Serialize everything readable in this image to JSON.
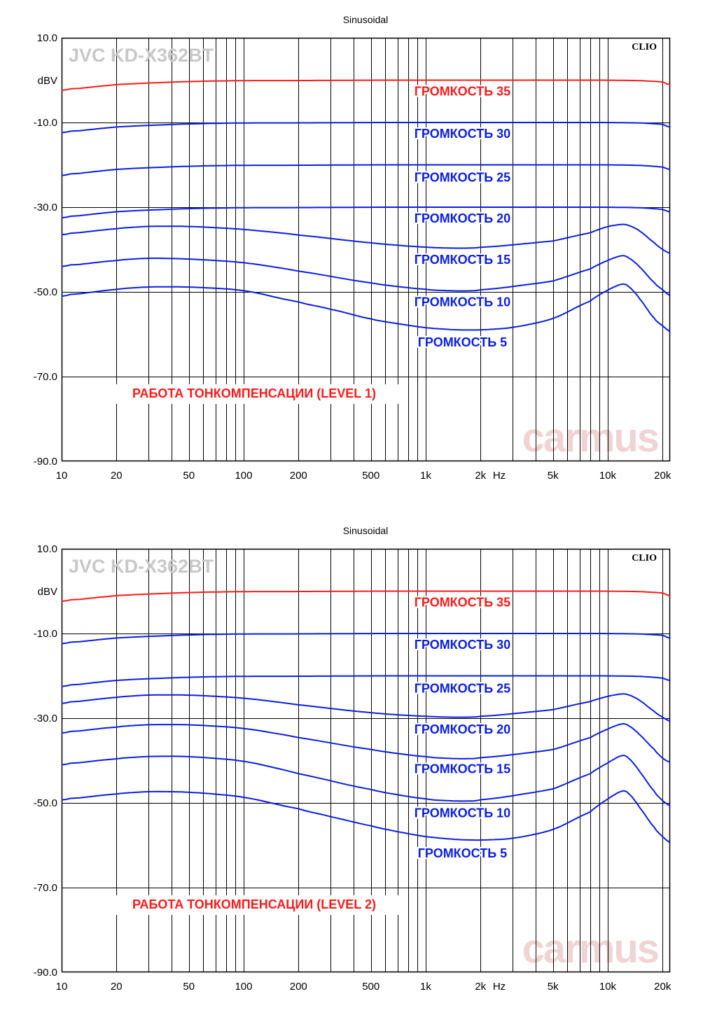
{
  "colors": {
    "red": "#ff1a1a",
    "blue": "#0a1ee0",
    "grid": "#000000",
    "brand": "#c8c8c8"
  },
  "chart_data": [
    {
      "type": "line",
      "title": "Sinusoidal",
      "brand": "JVC KD-X362BT",
      "logo": "CLIO",
      "watermark": "carmus",
      "caption": "РАБОТА ТОНКОМПЕНСАЦИИ (LEVEL 1)",
      "ylabel": "dBV",
      "xunit": "Hz",
      "xscale": "log",
      "xlim": [
        10,
        22000
      ],
      "ylim": [
        -90,
        10
      ],
      "yticks": [
        "10.0",
        "-10.0",
        "-30.0",
        "-50.0",
        "-70.0",
        "-90.0"
      ],
      "xticks": [
        {
          "v": 10,
          "label": "10"
        },
        {
          "v": 20,
          "label": "20"
        },
        {
          "v": 50,
          "label": "50"
        },
        {
          "v": 100,
          "label": "100"
        },
        {
          "v": 200,
          "label": "200"
        },
        {
          "v": 500,
          "label": "500"
        },
        {
          "v": 1000,
          "label": "1k"
        },
        {
          "v": 2000,
          "label": "2k"
        },
        {
          "v": 5000,
          "label": "5k"
        },
        {
          "v": 10000,
          "label": "10k"
        },
        {
          "v": 20000,
          "label": "20k"
        }
      ],
      "series": [
        {
          "name": "ГРОМКОСТЬ 35",
          "color": "red",
          "label_f": 1900,
          "label_db": -2.5,
          "x": [
            10,
            20,
            50,
            100,
            200,
            500,
            1000,
            2000,
            5000,
            10000,
            15000,
            20000,
            22000
          ],
          "y": [
            -2.4,
            -1.0,
            -0.3,
            -0.1,
            -0.1,
            0,
            0,
            0,
            0,
            0,
            -0.1,
            -0.4,
            -1.2
          ]
        },
        {
          "name": "ГРОМКОСТЬ 30",
          "color": "blue",
          "label_f": 1900,
          "label_db": -12.5,
          "x": [
            10,
            20,
            50,
            100,
            200,
            500,
            1000,
            2000,
            5000,
            10000,
            15000,
            20000,
            22000
          ],
          "y": [
            -12.4,
            -11.0,
            -10.3,
            -10.1,
            -10.1,
            -10,
            -10,
            -10,
            -10,
            -10,
            -10.1,
            -10.4,
            -11.2
          ]
        },
        {
          "name": "ГРОМКОСТЬ 25",
          "color": "blue",
          "label_f": 1900,
          "label_db": -22.8,
          "x": [
            10,
            20,
            50,
            100,
            200,
            500,
            1000,
            2000,
            5000,
            10000,
            15000,
            20000,
            22000
          ],
          "y": [
            -22.5,
            -21.0,
            -20.3,
            -20.1,
            -20.1,
            -20,
            -20,
            -20,
            -20,
            -20,
            -20.1,
            -20.5,
            -21.2
          ]
        },
        {
          "name": "ГРОМКОСТЬ 20",
          "color": "blue",
          "label_f": 1900,
          "label_db": -32.5,
          "x": [
            10,
            20,
            50,
            100,
            200,
            500,
            1000,
            2000,
            5000,
            10000,
            15000,
            20000,
            22000
          ],
          "y": [
            -32.5,
            -31.0,
            -30.3,
            -30.1,
            -30.1,
            -30,
            -30,
            -30,
            -30,
            -30,
            -30.1,
            -30.5,
            -31.2
          ]
        },
        {
          "name": "ГРОМКОСТЬ 15",
          "color": "blue",
          "label_f": 1900,
          "label_db": -42.2,
          "x": [
            10,
            20,
            30,
            50,
            100,
            200,
            500,
            1000,
            1500,
            2000,
            5000,
            8000,
            10000,
            12000,
            13000,
            15000,
            18000,
            20000,
            22000
          ],
          "y": [
            -36.5,
            -35.0,
            -34.5,
            -34.5,
            -35.2,
            -36.5,
            -38.5,
            -39.5,
            -39.7,
            -39.6,
            -38.0,
            -36.0,
            -34.5,
            -34.0,
            -34.2,
            -35.5,
            -38.5,
            -40.0,
            -41.0
          ]
        },
        {
          "name": "ГРОМКОСТЬ 10",
          "color": "blue",
          "label_f": 1900,
          "label_db": -52.2,
          "x": [
            10,
            20,
            30,
            50,
            100,
            200,
            500,
            1000,
            1500,
            2000,
            5000,
            8000,
            10000,
            12000,
            13000,
            15000,
            18000,
            20000,
            22000
          ],
          "y": [
            -44.0,
            -42.5,
            -42.0,
            -42.2,
            -43.0,
            -45.0,
            -48.0,
            -49.5,
            -49.8,
            -49.7,
            -47.5,
            -44.5,
            -42.5,
            -41.3,
            -41.8,
            -44.0,
            -48.0,
            -49.5,
            -51.0
          ]
        },
        {
          "name": "ГРОМКОСТЬ 5",
          "color": "blue",
          "label_f": 1900,
          "label_db": -61.7,
          "x": [
            10,
            20,
            30,
            50,
            100,
            200,
            300,
            500,
            700,
            1000,
            1500,
            2000,
            3000,
            5000,
            8000,
            10000,
            12000,
            13000,
            15000,
            18000,
            20000,
            22000
          ],
          "y": [
            -51.0,
            -49.3,
            -48.8,
            -48.8,
            -49.5,
            -52.5,
            -54.0,
            -56.5,
            -57.5,
            -58.5,
            -59.0,
            -59.0,
            -58.5,
            -56.5,
            -52.0,
            -49.5,
            -48.0,
            -48.5,
            -51.5,
            -56.5,
            -58.0,
            -59.5
          ]
        }
      ]
    },
    {
      "type": "line",
      "title": "Sinusoidal",
      "brand": "JVC KD-X362BT",
      "logo": "CLIO",
      "watermark": "carmus",
      "caption": "РАБОТА ТОНКОМПЕНСАЦИИ (LEVEL 2)",
      "ylabel": "dBV",
      "xunit": "Hz",
      "xscale": "log",
      "xlim": [
        10,
        22000
      ],
      "ylim": [
        -90,
        10
      ],
      "yticks": [
        "10.0",
        "-10.0",
        "-30.0",
        "-50.0",
        "-70.0",
        "-90.0"
      ],
      "xticks": [
        {
          "v": 10,
          "label": "10"
        },
        {
          "v": 20,
          "label": "20"
        },
        {
          "v": 50,
          "label": "50"
        },
        {
          "v": 100,
          "label": "100"
        },
        {
          "v": 200,
          "label": "200"
        },
        {
          "v": 500,
          "label": "500"
        },
        {
          "v": 1000,
          "label": "1k"
        },
        {
          "v": 2000,
          "label": "2k"
        },
        {
          "v": 5000,
          "label": "5k"
        },
        {
          "v": 10000,
          "label": "10k"
        },
        {
          "v": 20000,
          "label": "20k"
        }
      ],
      "series": [
        {
          "name": "ГРОМКОСТЬ 35",
          "color": "red",
          "label_f": 1900,
          "label_db": -2.5,
          "x": [
            10,
            20,
            50,
            100,
            200,
            500,
            1000,
            2000,
            5000,
            10000,
            15000,
            20000,
            22000
          ],
          "y": [
            -2.4,
            -1.0,
            -0.3,
            -0.1,
            -0.1,
            0,
            0,
            0,
            0,
            0,
            -0.1,
            -0.4,
            -1.2
          ]
        },
        {
          "name": "ГРОМКОСТЬ 30",
          "color": "blue",
          "label_f": 1900,
          "label_db": -12.5,
          "x": [
            10,
            20,
            50,
            100,
            200,
            500,
            1000,
            2000,
            5000,
            10000,
            15000,
            20000,
            22000
          ],
          "y": [
            -12.4,
            -11.0,
            -10.3,
            -10.1,
            -10.1,
            -10,
            -10,
            -10,
            -10,
            -10,
            -10.1,
            -10.4,
            -11.2
          ]
        },
        {
          "name": "ГРОМКОСТЬ 25",
          "color": "blue",
          "label_f": 1900,
          "label_db": -22.8,
          "x": [
            10,
            20,
            50,
            100,
            200,
            500,
            1000,
            2000,
            5000,
            10000,
            15000,
            20000,
            22000
          ],
          "y": [
            -22.5,
            -21.0,
            -20.3,
            -20.1,
            -20.1,
            -20,
            -20,
            -20,
            -20,
            -20,
            -20.1,
            -20.5,
            -21.2
          ]
        },
        {
          "name": "ГРОМКОСТЬ 20",
          "color": "blue",
          "label_f": 1900,
          "label_db": -32.5,
          "x": [
            10,
            20,
            30,
            50,
            100,
            200,
            500,
            1000,
            1500,
            2000,
            5000,
            8000,
            10000,
            12000,
            13000,
            15000,
            18000,
            20000,
            22000
          ],
          "y": [
            -26.5,
            -25.0,
            -24.5,
            -24.5,
            -25.2,
            -26.8,
            -28.8,
            -29.6,
            -29.8,
            -29.7,
            -28.0,
            -26.0,
            -24.8,
            -24.2,
            -24.4,
            -25.7,
            -28.5,
            -29.8,
            -30.8
          ]
        },
        {
          "name": "ГРОМКОСТЬ 15",
          "color": "blue",
          "label_f": 1900,
          "label_db": -41.8,
          "x": [
            10,
            20,
            30,
            50,
            100,
            200,
            500,
            1000,
            1500,
            2000,
            5000,
            8000,
            10000,
            12000,
            13000,
            15000,
            18000,
            20000,
            22000
          ],
          "y": [
            -33.5,
            -32.0,
            -31.5,
            -31.5,
            -32.3,
            -34.5,
            -37.5,
            -39.2,
            -39.6,
            -39.5,
            -37.5,
            -34.5,
            -32.5,
            -31.2,
            -31.6,
            -33.8,
            -37.5,
            -39.5,
            -40.5
          ]
        },
        {
          "name": "ГРОМКОСТЬ 10",
          "color": "blue",
          "label_f": 1900,
          "label_db": -52.2,
          "x": [
            10,
            20,
            30,
            50,
            100,
            200,
            500,
            1000,
            1500,
            2000,
            5000,
            8000,
            10000,
            12000,
            13000,
            15000,
            18000,
            20000,
            22000
          ],
          "y": [
            -41.0,
            -39.5,
            -39.0,
            -39.0,
            -40.0,
            -43.0,
            -47.0,
            -49.2,
            -49.6,
            -49.5,
            -46.8,
            -43.0,
            -40.5,
            -38.6,
            -39.2,
            -42.5,
            -47.5,
            -49.5,
            -50.8
          ]
        },
        {
          "name": "ГРОМКОСТЬ 5",
          "color": "blue",
          "label_f": 1900,
          "label_db": -61.7,
          "x": [
            10,
            20,
            30,
            50,
            100,
            200,
            300,
            500,
            700,
            1000,
            1500,
            2000,
            3000,
            5000,
            8000,
            10000,
            12000,
            13000,
            15000,
            18000,
            20000,
            22000
          ],
          "y": [
            -49.3,
            -47.8,
            -47.3,
            -47.4,
            -48.5,
            -51.5,
            -53.2,
            -55.5,
            -56.8,
            -58.0,
            -58.7,
            -58.8,
            -58.5,
            -56.5,
            -52.0,
            -49.0,
            -47.0,
            -47.5,
            -51.0,
            -56.0,
            -58.0,
            -59.5
          ]
        }
      ]
    }
  ]
}
